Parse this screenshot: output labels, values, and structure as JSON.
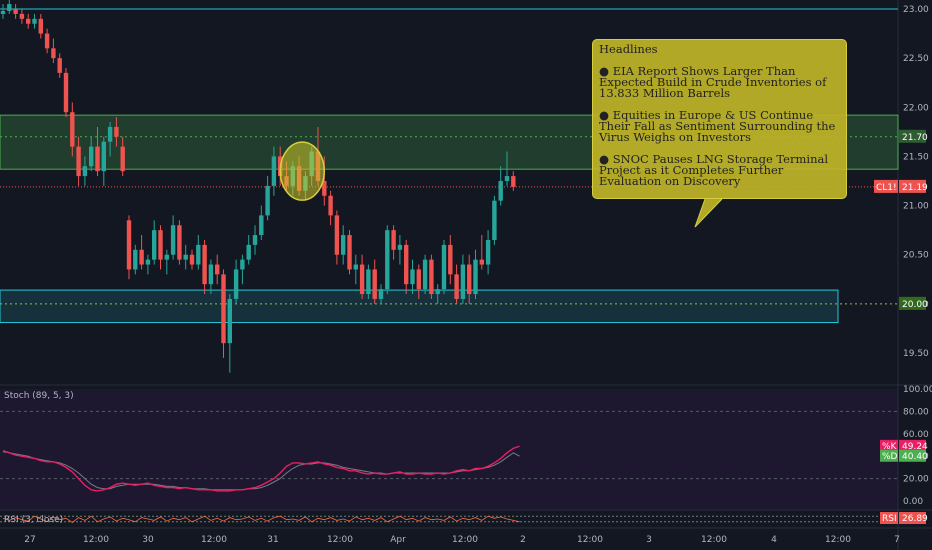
{
  "chart_data": [
    {
      "type": "candlestick",
      "symbol_tag": "CL1!",
      "last_price": "21.19",
      "y_ticks": [
        "23.00",
        "22.50",
        "22.00",
        "21.50",
        "21.00",
        "20.50",
        "20.00",
        "19.50"
      ],
      "ylim": [
        19.3,
        23.1
      ],
      "x_tick_labels": [
        "27",
        "12:00",
        "30",
        "12:00",
        "31",
        "12:00",
        "Apr",
        "12:00",
        "2",
        "12:00",
        "3",
        "12:00",
        "4",
        "12:00",
        "7"
      ],
      "price_labels": [
        "21.70",
        "20.00"
      ],
      "candles": [
        [
          22.95,
          23.05,
          22.9,
          22.98
        ],
        [
          22.98,
          23.1,
          22.95,
          23.05
        ],
        [
          23.0,
          23.05,
          22.9,
          22.95
        ],
        [
          22.95,
          23.0,
          22.85,
          22.9
        ],
        [
          22.9,
          22.95,
          22.8,
          22.85
        ],
        [
          22.85,
          22.95,
          22.8,
          22.9
        ],
        [
          22.9,
          22.95,
          22.7,
          22.75
        ],
        [
          22.75,
          22.8,
          22.55,
          22.6
        ],
        [
          22.6,
          22.7,
          22.45,
          22.5
        ],
        [
          22.5,
          22.55,
          22.3,
          22.35
        ],
        [
          22.35,
          22.4,
          21.9,
          21.95
        ],
        [
          21.95,
          22.05,
          21.5,
          21.6
        ],
        [
          21.6,
          21.7,
          21.2,
          21.3
        ],
        [
          21.3,
          21.5,
          21.2,
          21.4
        ],
        [
          21.4,
          21.7,
          21.35,
          21.6
        ],
        [
          21.6,
          21.8,
          21.3,
          21.35
        ],
        [
          21.35,
          21.7,
          21.2,
          21.65
        ],
        [
          21.65,
          21.85,
          21.5,
          21.8
        ],
        [
          21.8,
          21.9,
          21.6,
          21.7
        ],
        [
          21.6,
          21.7,
          21.3,
          21.35
        ],
        [
          20.85,
          20.9,
          20.25,
          20.35
        ],
        [
          20.35,
          20.6,
          20.3,
          20.55
        ],
        [
          20.55,
          20.7,
          20.35,
          20.4
        ],
        [
          20.4,
          20.5,
          20.3,
          20.45
        ],
        [
          20.45,
          20.85,
          20.4,
          20.75
        ],
        [
          20.75,
          20.8,
          20.35,
          20.45
        ],
        [
          20.45,
          20.55,
          20.3,
          20.5
        ],
        [
          20.5,
          20.9,
          20.45,
          20.8
        ],
        [
          20.8,
          20.85,
          20.4,
          20.45
        ],
        [
          20.45,
          20.6,
          20.35,
          20.5
        ],
        [
          20.5,
          20.55,
          20.35,
          20.4
        ],
        [
          20.4,
          20.7,
          20.35,
          20.6
        ],
        [
          20.6,
          20.65,
          20.1,
          20.2
        ],
        [
          20.2,
          20.45,
          20.1,
          20.4
        ],
        [
          20.4,
          20.5,
          20.2,
          20.3
        ],
        [
          20.3,
          20.35,
          19.45,
          19.6
        ],
        [
          19.6,
          20.1,
          19.3,
          20.05
        ],
        [
          20.05,
          20.45,
          20.0,
          20.35
        ],
        [
          20.35,
          20.5,
          20.2,
          20.45
        ],
        [
          20.45,
          20.7,
          20.4,
          20.6
        ],
        [
          20.6,
          20.8,
          20.5,
          20.7
        ],
        [
          20.7,
          21.0,
          20.65,
          20.9
        ],
        [
          20.9,
          21.3,
          20.85,
          21.2
        ],
        [
          21.2,
          21.6,
          21.1,
          21.5
        ],
        [
          21.5,
          21.6,
          21.2,
          21.3
        ],
        [
          21.3,
          21.45,
          21.15,
          21.2
        ],
        [
          21.2,
          21.45,
          21.1,
          21.4
        ],
        [
          21.4,
          21.5,
          21.1,
          21.15
        ],
        [
          21.15,
          21.35,
          21.05,
          21.3
        ],
        [
          21.3,
          21.6,
          21.2,
          21.55
        ],
        [
          21.55,
          21.8,
          21.2,
          21.25
        ],
        [
          21.25,
          21.5,
          21.0,
          21.1
        ],
        [
          21.1,
          21.15,
          20.8,
          20.9
        ],
        [
          20.9,
          20.95,
          20.4,
          20.5
        ],
        [
          20.5,
          20.8,
          20.4,
          20.7
        ],
        [
          20.7,
          20.75,
          20.3,
          20.35
        ],
        [
          20.35,
          20.5,
          20.2,
          20.4
        ],
        [
          20.4,
          20.5,
          20.05,
          20.1
        ],
        [
          20.1,
          20.4,
          20.05,
          20.35
        ],
        [
          20.35,
          20.45,
          20.0,
          20.05
        ],
        [
          20.05,
          20.2,
          20.0,
          20.15
        ],
        [
          20.15,
          20.8,
          20.1,
          20.75
        ],
        [
          20.75,
          20.8,
          20.45,
          20.55
        ],
        [
          20.55,
          20.7,
          20.4,
          20.6
        ],
        [
          20.6,
          20.65,
          20.1,
          20.2
        ],
        [
          20.2,
          20.45,
          20.1,
          20.35
        ],
        [
          20.35,
          20.4,
          20.05,
          20.15
        ],
        [
          20.15,
          20.5,
          20.1,
          20.45
        ],
        [
          20.45,
          20.5,
          20.05,
          20.1
        ],
        [
          20.1,
          20.2,
          20.0,
          20.15
        ],
        [
          20.15,
          20.65,
          20.1,
          20.6
        ],
        [
          20.6,
          20.7,
          20.2,
          20.3
        ],
        [
          20.3,
          20.4,
          20.0,
          20.05
        ],
        [
          20.05,
          20.5,
          20.0,
          20.4
        ],
        [
          20.4,
          20.5,
          20.0,
          20.1
        ],
        [
          20.1,
          20.55,
          20.05,
          20.45
        ],
        [
          20.45,
          20.7,
          20.35,
          20.4
        ],
        [
          20.4,
          20.75,
          20.3,
          20.65
        ],
        [
          20.65,
          21.1,
          20.6,
          21.05
        ],
        [
          21.05,
          21.4,
          21.0,
          21.25
        ],
        [
          21.25,
          21.55,
          21.2,
          21.3
        ],
        [
          21.3,
          21.35,
          21.15,
          21.19
        ]
      ]
    },
    {
      "type": "line",
      "indicator": "Stoch (89, 5, 3)",
      "y_ticks": [
        "100.00",
        "80.00",
        "60.00",
        "40.00",
        "20.00",
        "0.00"
      ],
      "ylim": [
        0,
        100
      ],
      "series": [
        {
          "name": "%K",
          "value_tag": "49.24"
        },
        {
          "name": "%D",
          "value_tag": "40.40"
        }
      ],
      "k_values": [
        45,
        43,
        41,
        40,
        39,
        38,
        36,
        35,
        35,
        33,
        30,
        26,
        20,
        14,
        10,
        9,
        10,
        12,
        15,
        16,
        15,
        14,
        15,
        16,
        14,
        13,
        12,
        12,
        11,
        12,
        11,
        10,
        10,
        10,
        9,
        9,
        9,
        10,
        10,
        11,
        12,
        14,
        17,
        20,
        25,
        31,
        34,
        34,
        33,
        34,
        35,
        33,
        32,
        30,
        29,
        27,
        27,
        25,
        24,
        25,
        24,
        24,
        25,
        26,
        24,
        24,
        25,
        24,
        24,
        25,
        24,
        25,
        27,
        28,
        27,
        29,
        29,
        31,
        34,
        38,
        43,
        47,
        49
      ],
      "d_values": [
        44,
        43,
        42,
        41,
        40,
        38,
        37,
        36,
        35,
        34,
        32,
        29,
        25,
        20,
        15,
        12,
        11,
        11,
        13,
        14,
        15,
        15,
        15,
        15,
        15,
        14,
        13,
        13,
        12,
        12,
        11,
        11,
        11,
        10,
        10,
        10,
        10,
        10,
        10,
        11,
        11,
        12,
        14,
        17,
        20,
        25,
        29,
        32,
        33,
        33,
        34,
        34,
        33,
        32,
        30,
        29,
        28,
        27,
        26,
        25,
        25,
        24,
        25,
        25,
        25,
        25,
        25,
        25,
        25,
        25,
        25,
        25,
        26,
        27,
        27,
        28,
        29,
        30,
        32,
        35,
        39,
        43,
        40
      ]
    },
    {
      "type": "line",
      "indicator": "RSI (3, close)",
      "value_tag": "26.89",
      "values": [
        55,
        40,
        60,
        45,
        35,
        70,
        50,
        30,
        65,
        45,
        55,
        25,
        60,
        40,
        70,
        30,
        50,
        65,
        35,
        55,
        45,
        30,
        60,
        50,
        40,
        65,
        35,
        55,
        45,
        60,
        30,
        50,
        70,
        40,
        55,
        35,
        60,
        45,
        50,
        65,
        40,
        55,
        35,
        60,
        70,
        45,
        50,
        40,
        65,
        30,
        55,
        45,
        60,
        40,
        50,
        35,
        65,
        45,
        55,
        40,
        60,
        30,
        50,
        70,
        45,
        55,
        35,
        60,
        45,
        50,
        40,
        65,
        35,
        55,
        45,
        60,
        40,
        70,
        55,
        65,
        50,
        40,
        30
      ]
    }
  ],
  "annotation": {
    "title": "Headlines",
    "items": [
      "● EIA Report Shows Larger Than Expected Build in Crude Inventories of 13.833 Million Barrels",
      "● Equities in Europe & US Continue Their Fall as Sentiment Surrounding the Virus Weighs on Investors",
      "● SNOC Pauses LNG Storage Terminal Project as it Completes Further Evaluation on Discovery"
    ]
  },
  "colors": {
    "up": "#26a69a",
    "down": "#ef5350",
    "background": "#131722",
    "zone_green": "#4caf50",
    "zone_teal": "#26c6da",
    "stoch_k": "#e91e63",
    "stoch_d": "#787b86",
    "annotation_bg": "#bdb328"
  }
}
